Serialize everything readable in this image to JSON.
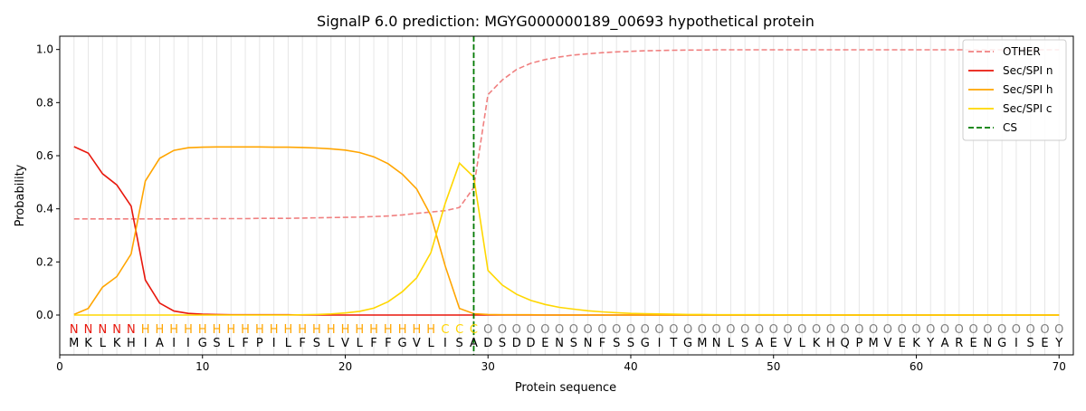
{
  "chart_data": {
    "type": "line",
    "title": "SignalP 6.0 prediction: MGYG000000189_00693 hypothetical protein",
    "xlabel": "Protein sequence",
    "ylabel": "Probability",
    "xlim": [
      0,
      71
    ],
    "ylim": [
      -0.15,
      1.05
    ],
    "x_ticks": [
      0,
      10,
      20,
      30,
      40,
      50,
      60,
      70
    ],
    "y_ticks": [
      0.0,
      0.2,
      0.4,
      0.6,
      0.8,
      1.0
    ],
    "x_tick_labels": [
      "0",
      "10",
      "20",
      "30",
      "40",
      "50",
      "60",
      "70"
    ],
    "y_tick_labels": [
      "0.0",
      "0.2",
      "0.4",
      "0.6",
      "0.8",
      "1.0"
    ],
    "grid": "vertical lines at each residue position",
    "legend_position": "top-right",
    "sequence": [
      "M",
      "K",
      "L",
      "K",
      "H",
      "I",
      "A",
      "I",
      "I",
      "G",
      "S",
      "L",
      "F",
      "P",
      "I",
      "L",
      "F",
      "S",
      "L",
      "V",
      "L",
      "F",
      "F",
      "G",
      "V",
      "L",
      "I",
      "S",
      "A",
      "D",
      "S",
      "D",
      "D",
      "E",
      "N",
      "S",
      "N",
      "F",
      "S",
      "S",
      "G",
      "I",
      "T",
      "G",
      "M",
      "N",
      "L",
      "S",
      "A",
      "E",
      "V",
      "L",
      "K",
      "H",
      "Q",
      "P",
      "M",
      "V",
      "E",
      "K",
      "Y",
      "A",
      "R",
      "E",
      "N",
      "G",
      "I",
      "S",
      "E",
      "Y"
    ],
    "region_labels": [
      "N",
      "N",
      "N",
      "N",
      "N",
      "H",
      "H",
      "H",
      "H",
      "H",
      "H",
      "H",
      "H",
      "H",
      "H",
      "H",
      "H",
      "H",
      "H",
      "H",
      "H",
      "H",
      "H",
      "H",
      "H",
      "H",
      "C",
      "C",
      "C",
      "O",
      "O",
      "O",
      "O",
      "O",
      "O",
      "O",
      "O",
      "O",
      "O",
      "O",
      "O",
      "O",
      "O",
      "O",
      "O",
      "O",
      "O",
      "O",
      "O",
      "O",
      "O",
      "O",
      "O",
      "O",
      "O",
      "O",
      "O",
      "O",
      "O",
      "O",
      "O",
      "O",
      "O",
      "O",
      "O",
      "O",
      "O",
      "O",
      "O",
      "O"
    ],
    "region_colors": {
      "N": "#e8170c",
      "H": "#ffa500",
      "C": "#ffd400",
      "O": "#808080"
    },
    "cs_position": 29,
    "series": [
      {
        "name": "OTHER",
        "color": "#f08080",
        "style": "dashed",
        "values": [
          0.362,
          0.362,
          0.362,
          0.362,
          0.362,
          0.362,
          0.362,
          0.362,
          0.363,
          0.363,
          0.363,
          0.363,
          0.363,
          0.364,
          0.364,
          0.364,
          0.365,
          0.366,
          0.367,
          0.368,
          0.369,
          0.371,
          0.373,
          0.377,
          0.383,
          0.388,
          0.393,
          0.405,
          0.48,
          0.83,
          0.885,
          0.925,
          0.948,
          0.962,
          0.972,
          0.979,
          0.984,
          0.988,
          0.991,
          0.993,
          0.995,
          0.996,
          0.997,
          0.998,
          0.998,
          0.999,
          0.999,
          0.999,
          0.999,
          0.999,
          0.999,
          0.999,
          0.999,
          0.999,
          0.999,
          0.999,
          0.999,
          0.999,
          0.999,
          0.999,
          0.999,
          0.999,
          0.999,
          0.999,
          0.999,
          0.999,
          0.999,
          0.999,
          0.999,
          0.999
        ]
      },
      {
        "name": "Sec/SPI n",
        "color": "#e8170c",
        "style": "solid",
        "values": [
          0.634,
          0.61,
          0.532,
          0.49,
          0.41,
          0.132,
          0.045,
          0.015,
          0.006,
          0.003,
          0.002,
          0.001,
          0.001,
          0.001,
          0.001,
          0.001,
          0,
          0,
          0,
          0,
          0,
          0,
          0,
          0,
          0,
          0,
          0,
          0,
          0,
          0,
          0,
          0,
          0,
          0,
          0,
          0,
          0,
          0,
          0,
          0,
          0,
          0,
          0,
          0,
          0,
          0,
          0,
          0,
          0,
          0,
          0,
          0,
          0,
          0,
          0,
          0,
          0,
          0,
          0,
          0,
          0,
          0,
          0,
          0,
          0,
          0,
          0,
          0,
          0,
          0
        ]
      },
      {
        "name": "Sec/SPI h",
        "color": "#ffa500",
        "style": "solid",
        "values": [
          0.002,
          0.025,
          0.105,
          0.145,
          0.23,
          0.505,
          0.59,
          0.62,
          0.63,
          0.632,
          0.633,
          0.633,
          0.633,
          0.633,
          0.632,
          0.632,
          0.631,
          0.629,
          0.626,
          0.621,
          0.612,
          0.596,
          0.57,
          0.53,
          0.475,
          0.375,
          0.185,
          0.025,
          0.005,
          0.002,
          0.001,
          0.001,
          0.001,
          0,
          0,
          0,
          0,
          0,
          0,
          0,
          0,
          0,
          0,
          0,
          0,
          0,
          0,
          0,
          0,
          0,
          0,
          0,
          0,
          0,
          0,
          0,
          0,
          0,
          0,
          0,
          0,
          0,
          0,
          0,
          0,
          0,
          0,
          0,
          0,
          0
        ]
      },
      {
        "name": "Sec/SPI c",
        "color": "#ffd700",
        "style": "solid",
        "values": [
          0,
          0,
          0,
          0,
          0,
          0,
          0,
          0,
          0,
          0,
          0,
          0,
          0,
          0,
          0,
          0,
          0.001,
          0.002,
          0.004,
          0.008,
          0.014,
          0.026,
          0.05,
          0.088,
          0.14,
          0.235,
          0.42,
          0.572,
          0.52,
          0.168,
          0.113,
          0.078,
          0.055,
          0.04,
          0.029,
          0.022,
          0.016,
          0.012,
          0.009,
          0.006,
          0.005,
          0.004,
          0.003,
          0.002,
          0.002,
          0.001,
          0.001,
          0.001,
          0.001,
          0.001,
          0,
          0,
          0,
          0,
          0,
          0,
          0,
          0,
          0,
          0,
          0,
          0,
          0,
          0,
          0,
          0,
          0,
          0,
          0,
          0
        ]
      }
    ],
    "cs_series": {
      "name": "CS",
      "color": "#007a00",
      "style": "dashed"
    }
  }
}
